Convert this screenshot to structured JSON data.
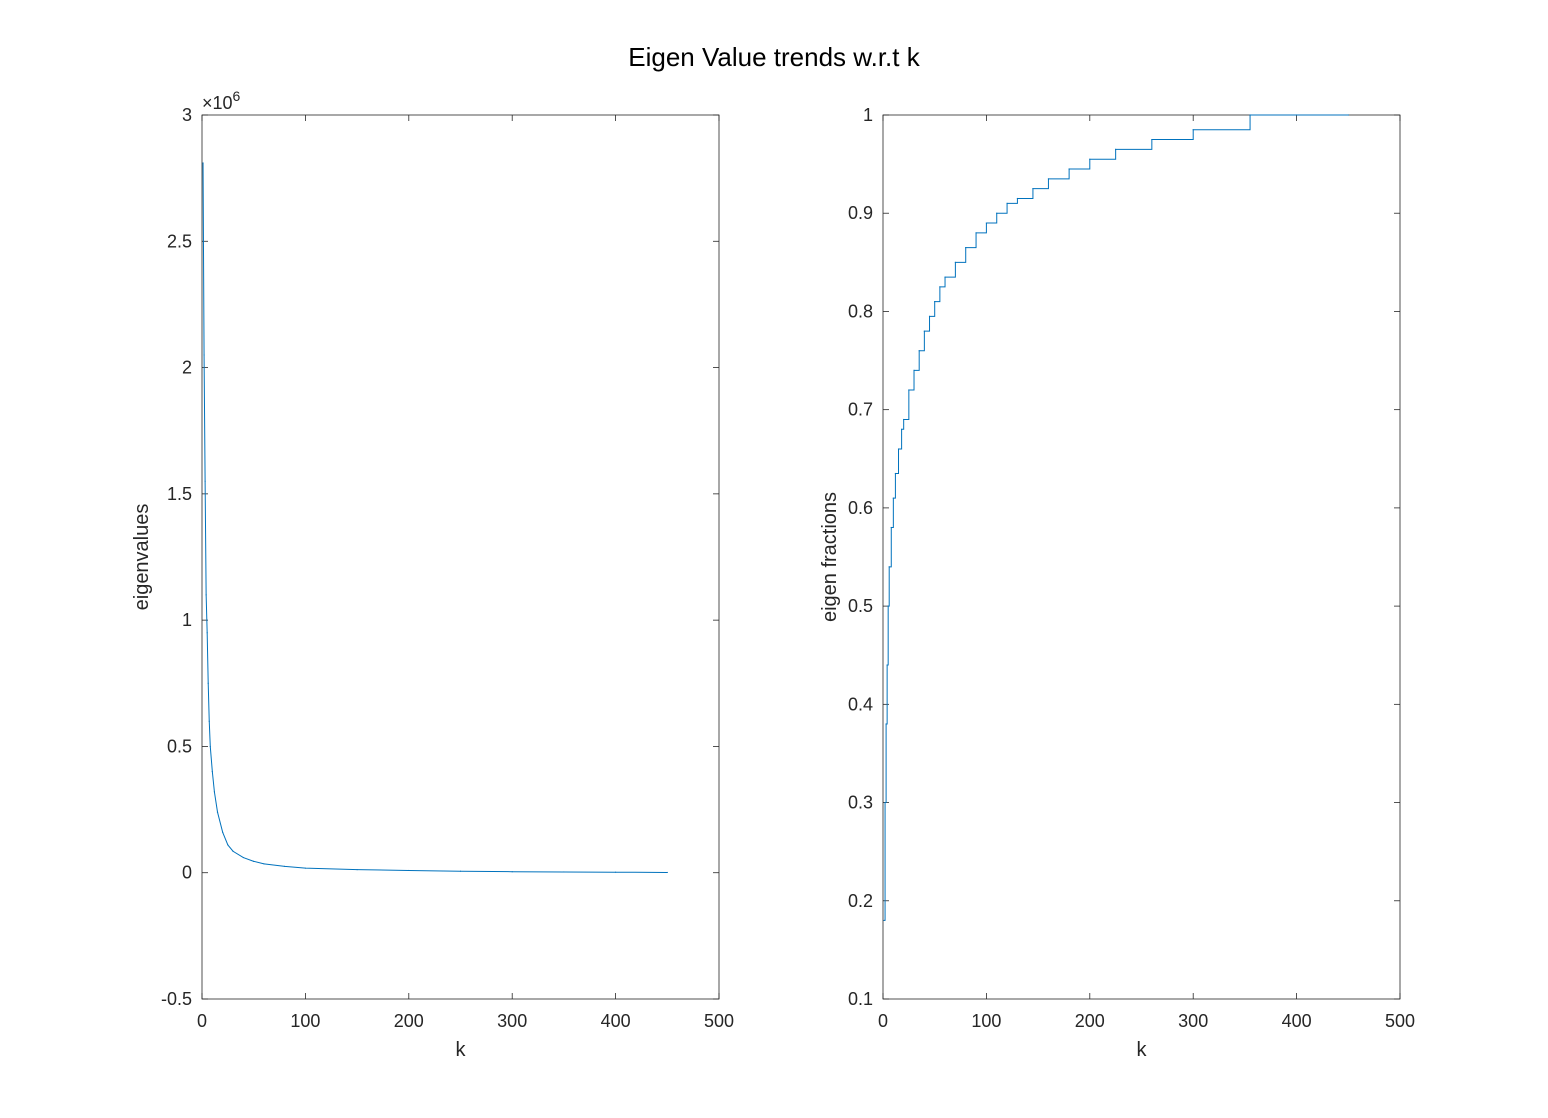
{
  "title": "Eigen Value trends w.r.t k",
  "chart_data": [
    {
      "type": "line",
      "title": "",
      "xlabel": "k",
      "ylabel": "eigenvalues",
      "xlim": [
        0,
        500
      ],
      "ylim": [
        -0.5,
        3
      ],
      "y_multiplier": "×10",
      "y_exponent": "6",
      "x_ticks": [
        "0",
        "100",
        "200",
        "300",
        "400",
        "500"
      ],
      "y_ticks": [
        "-0.5",
        "0",
        "0.5",
        "1",
        "1.5",
        "2",
        "2.5",
        "3"
      ],
      "grid": false,
      "color": "#0072BD",
      "series": [
        {
          "x": [
            1,
            2,
            3,
            4,
            5,
            6,
            7,
            8,
            10,
            12,
            15,
            20,
            25,
            30,
            40,
            50,
            60,
            80,
            100,
            150,
            200,
            250,
            300,
            350,
            400,
            450
          ],
          "y": [
            2.81,
            2.05,
            1.55,
            1.1,
            0.95,
            0.75,
            0.6,
            0.5,
            0.4,
            0.32,
            0.24,
            0.16,
            0.11,
            0.085,
            0.06,
            0.045,
            0.035,
            0.025,
            0.018,
            0.012,
            0.009,
            0.006,
            0.004,
            0.003,
            0.002,
            0.001
          ]
        }
      ]
    },
    {
      "type": "line",
      "title": "",
      "xlabel": "k",
      "ylabel": "eigen fractions",
      "xlim": [
        0,
        500
      ],
      "ylim": [
        0.1,
        1
      ],
      "x_ticks": [
        "0",
        "100",
        "200",
        "300",
        "400",
        "500"
      ],
      "y_ticks": [
        "0.1",
        "0.2",
        "0.3",
        "0.4",
        "0.5",
        "0.6",
        "0.7",
        "0.8",
        "0.9",
        "1"
      ],
      "grid": false,
      "color": "#0072BD",
      "series": [
        {
          "x": [
            1,
            2,
            3,
            4,
            5,
            6,
            8,
            10,
            12,
            15,
            18,
            20,
            25,
            30,
            35,
            40,
            45,
            50,
            55,
            60,
            70,
            80,
            90,
            100,
            110,
            120,
            130,
            145,
            160,
            180,
            200,
            225,
            260,
            300,
            355,
            400,
            450
          ],
          "y": [
            0.18,
            0.3,
            0.38,
            0.44,
            0.5,
            0.54,
            0.58,
            0.61,
            0.635,
            0.66,
            0.68,
            0.69,
            0.72,
            0.74,
            0.76,
            0.78,
            0.795,
            0.81,
            0.825,
            0.835,
            0.85,
            0.865,
            0.88,
            0.89,
            0.9,
            0.91,
            0.915,
            0.925,
            0.935,
            0.945,
            0.955,
            0.965,
            0.975,
            0.985,
            1.0,
            1.0,
            1.0
          ]
        }
      ]
    }
  ]
}
